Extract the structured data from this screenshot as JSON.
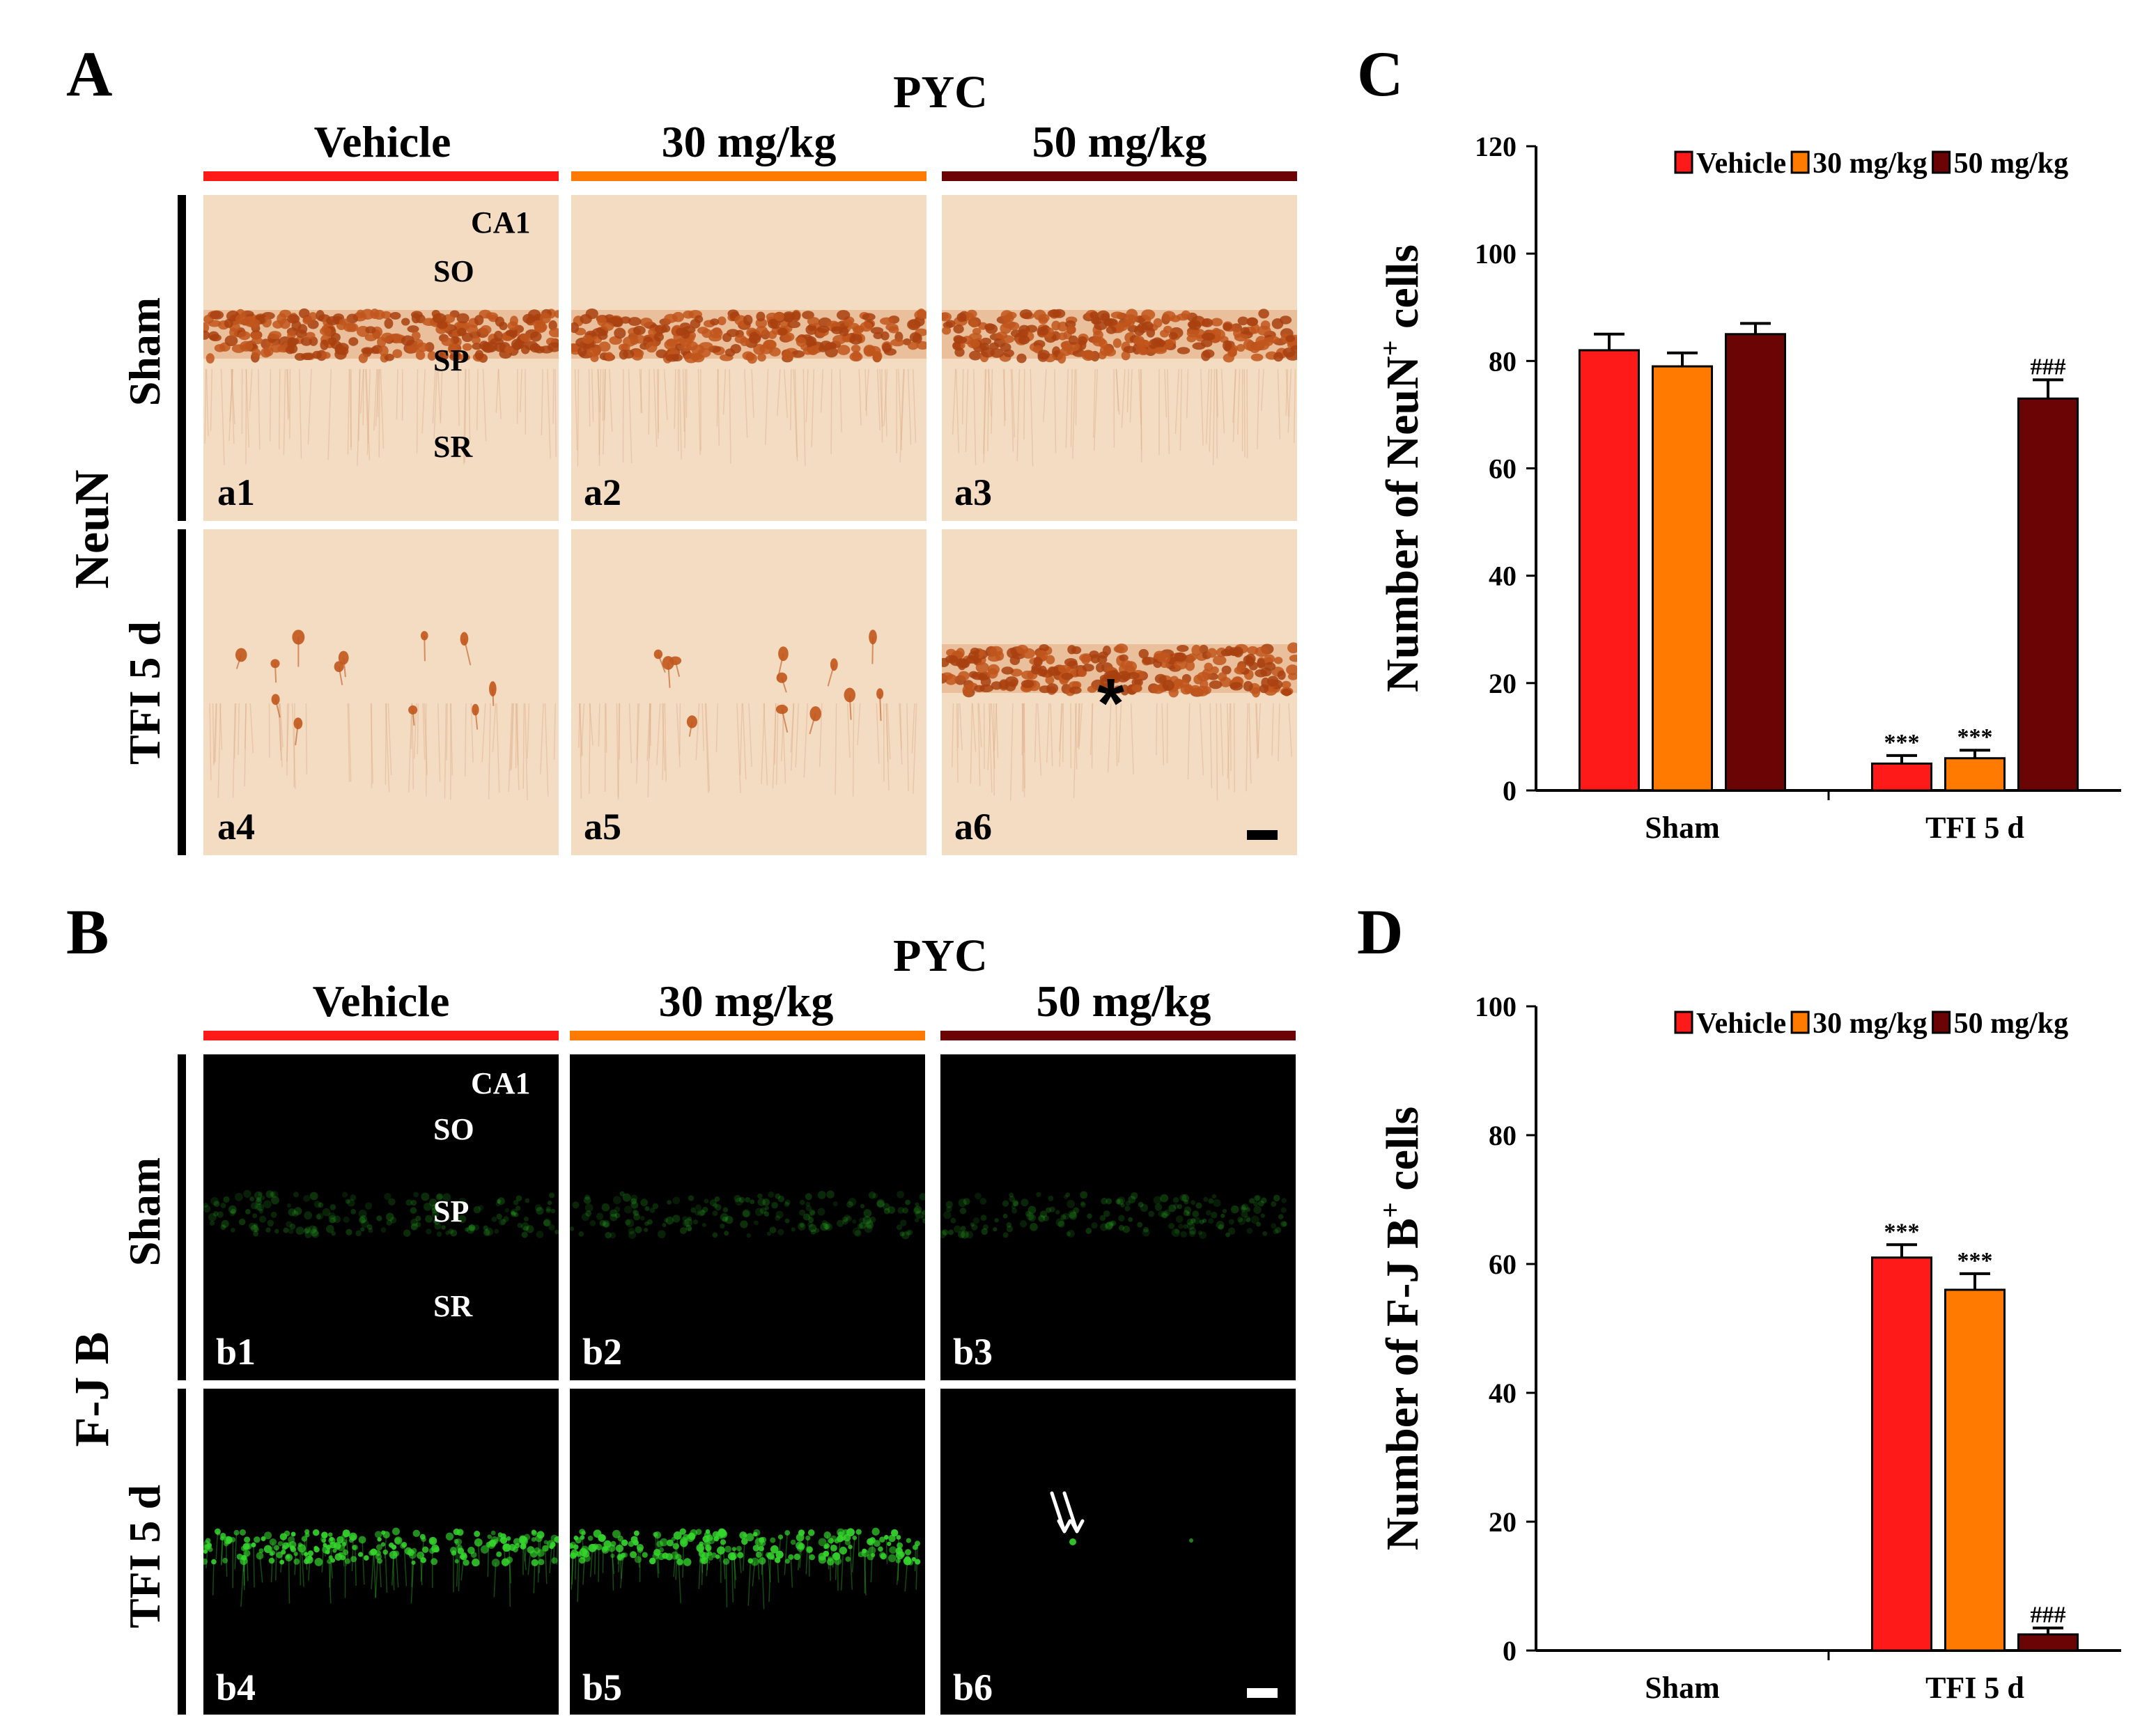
{
  "panel_A": {
    "letter": "A",
    "drug": "PYC",
    "groups": [
      "Vehicle",
      "30 mg/kg",
      "50 mg/kg"
    ],
    "stain": "NeuN",
    "rows": [
      "Sham",
      "TFI 5 d"
    ],
    "region": "CA1",
    "layers": [
      "SO",
      "SP",
      "SR"
    ],
    "tiles": [
      "a1",
      "a2",
      "a3",
      "a4",
      "a5",
      "a6"
    ],
    "asterisk": "*"
  },
  "panel_B": {
    "letter": "B",
    "drug": "PYC",
    "groups": [
      "Vehicle",
      "30 mg/kg",
      "50 mg/kg"
    ],
    "stain": "F-J B",
    "rows": [
      "Sham",
      "TFI 5 d"
    ],
    "region": "CA1",
    "layers": [
      "SO",
      "SP",
      "SR"
    ],
    "tiles": [
      "b1",
      "b2",
      "b3",
      "b4",
      "b5",
      "b6"
    ]
  },
  "colors": {
    "vehicle": "#ff1a1a",
    "mg30": "#ff7a00",
    "mg50": "#6b0505",
    "tissue_bg": "#f3dcc2",
    "neuron": "#c1561c",
    "fluor_bg": "#000000",
    "fluor": "#35d62d"
  },
  "chart_data": [
    {
      "panel": "C",
      "type": "bar",
      "ylabel_prefix": "Number of NeuN",
      "ylabel_sup": "+",
      "ylabel_suffix": " cells",
      "categories": [
        "Sham",
        "TFI 5 d"
      ],
      "ylim": [
        0,
        120
      ],
      "yticks": [
        0,
        20,
        40,
        60,
        80,
        100,
        120
      ],
      "legend": [
        "Vehicle",
        "30 mg/kg",
        "50 mg/kg"
      ],
      "legend_position": "top-right",
      "series": [
        {
          "name": "Vehicle",
          "values": [
            82,
            5
          ],
          "errors": [
            3,
            1.5
          ],
          "annotations": [
            "",
            "***"
          ]
        },
        {
          "name": "30 mg/kg",
          "values": [
            79,
            6
          ],
          "errors": [
            2.5,
            1.5
          ],
          "annotations": [
            "",
            "***"
          ]
        },
        {
          "name": "50 mg/kg",
          "values": [
            85,
            73
          ],
          "errors": [
            2,
            3.5
          ],
          "annotations": [
            "",
            "###"
          ]
        }
      ]
    },
    {
      "panel": "D",
      "type": "bar",
      "ylabel_prefix": "Number of F-J B",
      "ylabel_sup": "+",
      "ylabel_suffix": " cells",
      "categories": [
        "Sham",
        "TFI 5 d"
      ],
      "ylim": [
        0,
        100
      ],
      "yticks": [
        0,
        20,
        40,
        60,
        80,
        100
      ],
      "legend": [
        "Vehicle",
        "30 mg/kg",
        "50 mg/kg"
      ],
      "legend_position": "top-right",
      "series": [
        {
          "name": "Vehicle",
          "values": [
            0,
            61
          ],
          "errors": [
            0,
            2
          ],
          "annotations": [
            "",
            "***"
          ]
        },
        {
          "name": "30 mg/kg",
          "values": [
            0,
            56
          ],
          "errors": [
            0,
            2.5
          ],
          "annotations": [
            "",
            "***"
          ]
        },
        {
          "name": "50 mg/kg",
          "values": [
            0,
            2.5
          ],
          "errors": [
            0,
            1
          ],
          "annotations": [
            "",
            "###"
          ]
        }
      ]
    }
  ]
}
